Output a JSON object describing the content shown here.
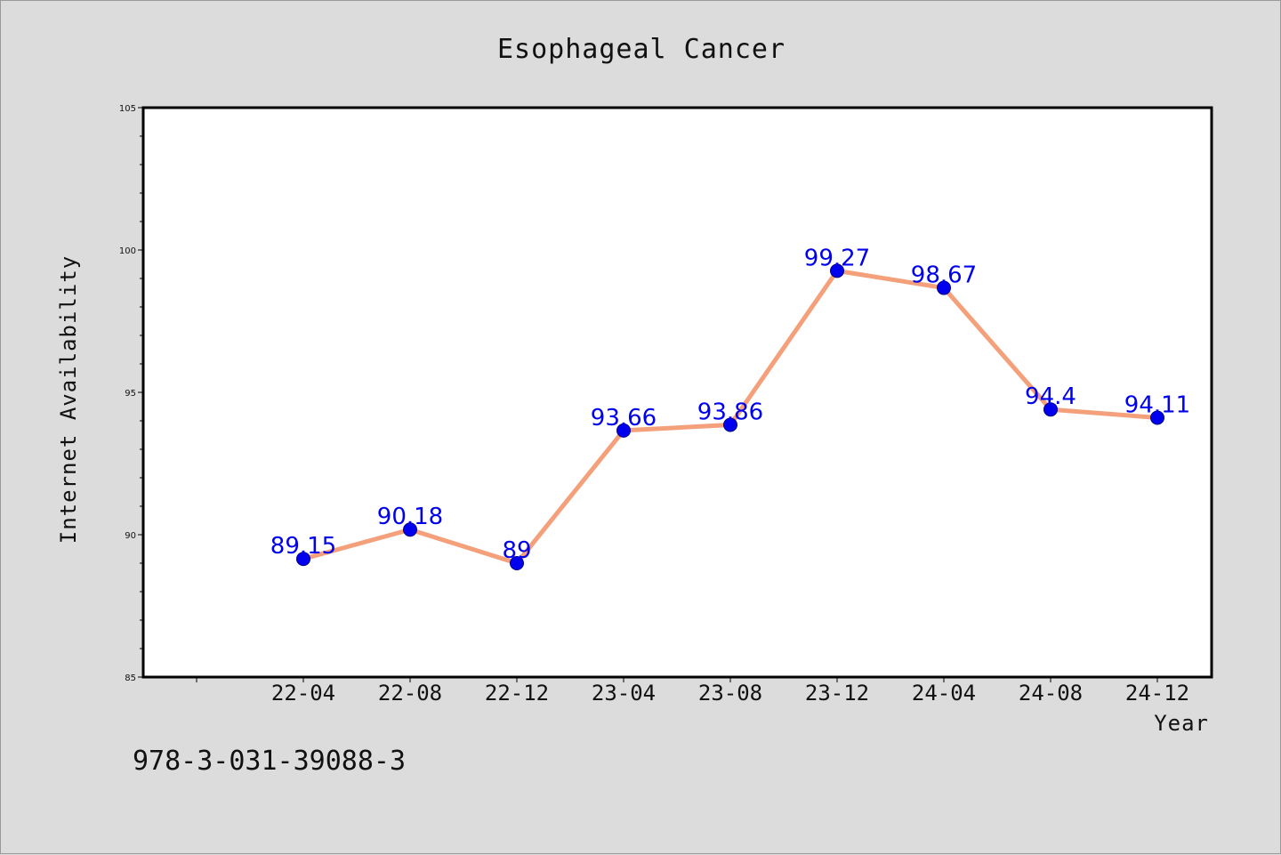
{
  "chart_data": {
    "type": "line",
    "title": "Esophageal Cancer",
    "xlabel": "Year",
    "ylabel": "Internet Availability",
    "categories": [
      "22-04",
      "22-08",
      "22-12",
      "23-04",
      "23-08",
      "23-12",
      "24-04",
      "24-08",
      "24-12"
    ],
    "series": [
      {
        "values": [
          89.15,
          90.18,
          89,
          93.66,
          93.86,
          99.27,
          98.67,
          94.4,
          94.11
        ],
        "labels": [
          "89.15",
          "90.18",
          "89",
          "93.66",
          "93.86",
          "99.27",
          "98.67",
          "94.4",
          "94.11"
        ]
      }
    ],
    "ylim": [
      85,
      105
    ],
    "yticks": [
      85,
      90,
      95,
      100,
      105
    ],
    "grid": false,
    "legend": "none",
    "colors": {
      "line": "#f4a07a",
      "marker": "#0000ee",
      "marker_edge": "#00008b",
      "label": "#0000ee",
      "plot_bg": "#ffffff",
      "page_bg": "#dcdcdc"
    }
  },
  "footer_text": "978-3-031-39088-3"
}
